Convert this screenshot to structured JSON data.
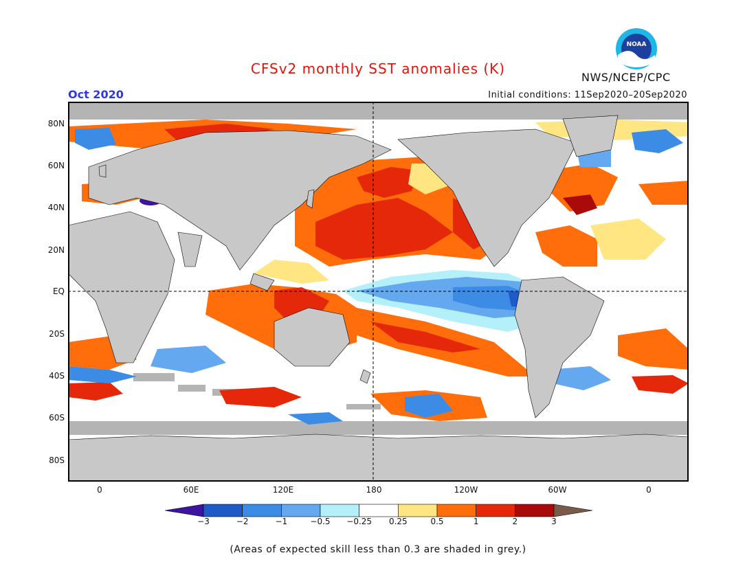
{
  "header": {
    "title": "CFSv2 monthly SST anomalies (K)",
    "month": "Oct 2020",
    "initial_conditions": "Initial conditions: 11Sep2020–20Sep2020",
    "organization": "NWS/NCEP/CPC",
    "logo_text": "NOAA"
  },
  "map": {
    "lat_labels": [
      "80N",
      "60N",
      "40N",
      "20N",
      "EQ",
      "20S",
      "40S",
      "60S",
      "80S"
    ],
    "lon_labels": [
      "0",
      "60E",
      "120E",
      "180",
      "120W",
      "60W",
      "0"
    ],
    "land_color": "#c8c8c8",
    "ocean_default_color": "#ffffff",
    "skill_mask_color": "#b4b4b4"
  },
  "colorbar": {
    "levels": [
      "−3",
      "−2",
      "−1",
      "−0.5",
      "−0.25",
      "0.25",
      "0.5",
      "1",
      "2",
      "3"
    ],
    "colors": [
      "#3c14a0",
      "#1e5ac8",
      "#3c8ce6",
      "#64a8f0",
      "#b4f0fa",
      "#ffffff",
      "#ffe682",
      "#ff6e0a",
      "#e6280a",
      "#aa0a0a",
      "#7a5a4a"
    ]
  },
  "footnote": "(Areas of expected skill less than 0.3 are shaded in grey.)"
}
